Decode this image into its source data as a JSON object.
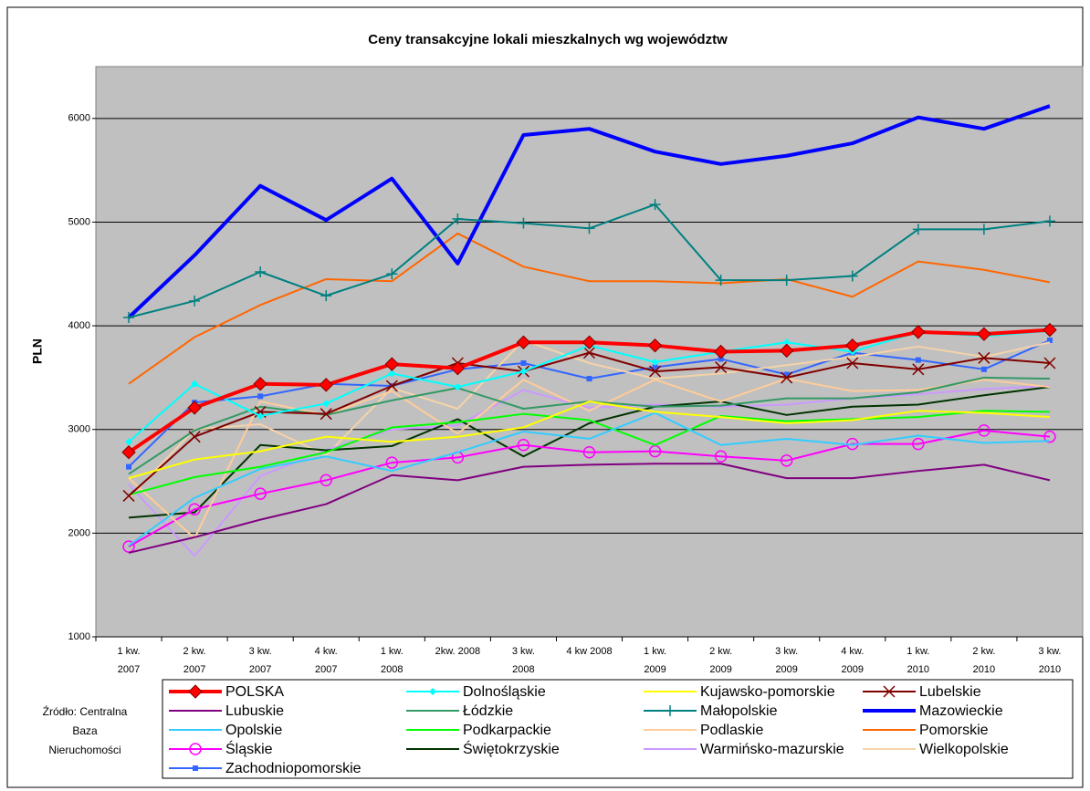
{
  "chart_data": {
    "type": "line",
    "title": "Ceny transakcyjne lokali mieszkalnych wg województw",
    "y_label": "PLN",
    "source": "Źródło: Centralna Baza Nieruchomości",
    "categories": [
      "1 kw. 2007",
      "2 kw. 2007",
      "3 kw. 2007",
      "4 kw. 2007",
      "1 kw. 2008",
      "2kw. 2008",
      "3 kw. 2008",
      "4 kw 2008",
      "1 kw. 2009",
      "2 kw. 2009",
      "3 kw. 2009",
      "4 kw. 2009",
      "1 kw. 2010",
      "2 kw. 2010",
      "3 kw. 2010"
    ],
    "ylim": [
      1000,
      6500
    ],
    "yticks": [
      1000,
      2000,
      3000,
      4000,
      5000,
      6000
    ],
    "grid": true,
    "series": [
      {
        "name": "POLSKA",
        "color": "#ff0000",
        "marker": "diamond",
        "values": [
          2780,
          3210,
          3440,
          3430,
          3630,
          3590,
          3840,
          3840,
          3810,
          3750,
          3760,
          3810,
          3940,
          3920,
          3960
        ]
      },
      {
        "name": "Dolnośląskie",
        "color": "#00ffff",
        "marker": "small-diamond",
        "values": [
          2880,
          3440,
          3130,
          3250,
          3540,
          3410,
          3560,
          3810,
          3650,
          3750,
          3840,
          3750,
          3940,
          3900,
          3950
        ]
      },
      {
        "name": "Kujawsko-pomorskie",
        "color": "#ffff00",
        "values": [
          2530,
          2710,
          2790,
          2930,
          2880,
          2930,
          3020,
          3270,
          3170,
          3120,
          3060,
          3090,
          3180,
          3160,
          3120
        ]
      },
      {
        "name": "Lubelskie",
        "color": "#800000",
        "marker": "x",
        "values": [
          2360,
          2930,
          3170,
          3150,
          3420,
          3640,
          3560,
          3740,
          3560,
          3600,
          3500,
          3640,
          3580,
          3690,
          3640
        ]
      },
      {
        "name": "Lubuskie",
        "color": "#800080",
        "values": [
          1810,
          1960,
          2130,
          2280,
          2560,
          2510,
          2640,
          2660,
          2670,
          2670,
          2530,
          2530,
          2600,
          2660,
          2510
        ]
      },
      {
        "name": "Łódzkie",
        "color": "#339966",
        "values": [
          2570,
          2990,
          3220,
          3140,
          3280,
          3400,
          3200,
          3270,
          3220,
          3230,
          3300,
          3300,
          3360,
          3500,
          3490
        ]
      },
      {
        "name": "Małopolskie",
        "color": "#008080",
        "marker": "plus",
        "values": [
          4080,
          4240,
          4520,
          4290,
          4500,
          5030,
          4990,
          4940,
          5170,
          4440,
          4440,
          4480,
          4930,
          4930,
          5010
        ]
      },
      {
        "name": "Mazowieckie",
        "color": "#0000ff",
        "values": [
          4080,
          4680,
          5350,
          5020,
          5420,
          4600,
          5840,
          5900,
          5680,
          5560,
          5640,
          5760,
          6010,
          5900,
          6120
        ]
      },
      {
        "name": "Opolskie",
        "color": "#33ccff",
        "values": [
          1880,
          2340,
          2620,
          2740,
          2600,
          2780,
          2980,
          2910,
          3160,
          2850,
          2910,
          2850,
          2940,
          2870,
          2890
        ]
      },
      {
        "name": "Podkarpackie",
        "color": "#00ff00",
        "values": [
          2370,
          2540,
          2640,
          2780,
          3020,
          3070,
          3150,
          3090,
          2850,
          3130,
          3080,
          3100,
          3120,
          3180,
          3170
        ]
      },
      {
        "name": "Podlaskie",
        "color": "#ffcc99",
        "values": [
          2530,
          1950,
          3270,
          3140,
          3370,
          2960,
          3480,
          3180,
          3480,
          3270,
          3490,
          3370,
          3380,
          3480,
          3410
        ]
      },
      {
        "name": "Pomorskie",
        "color": "#ff6600",
        "values": [
          3440,
          3890,
          4200,
          4450,
          4430,
          4890,
          4570,
          4430,
          4430,
          4410,
          4450,
          4280,
          4620,
          4540,
          4420
        ]
      },
      {
        "name": "Śląskie",
        "color": "#ff00ff",
        "marker": "circle",
        "values": [
          1870,
          2230,
          2380,
          2510,
          2680,
          2730,
          2850,
          2780,
          2790,
          2740,
          2700,
          2860,
          2860,
          2990,
          2930
        ]
      },
      {
        "name": "Świętokrzyskie",
        "color": "#003300",
        "values": [
          2150,
          2200,
          2850,
          2800,
          2840,
          3100,
          2740,
          3060,
          3220,
          3270,
          3140,
          3220,
          3240,
          3330,
          3410
        ]
      },
      {
        "name": "Warmińsko-mazurskie",
        "color": "#cc99ff",
        "values": [
          2470,
          1780,
          2550,
          2800,
          3000,
          3040,
          3380,
          3210,
          3240,
          3220,
          3240,
          3300,
          3340,
          3390,
          3420
        ]
      },
      {
        "name": "Wielkopolskie",
        "color": "#f5d3a8",
        "values": [
          2340,
          3000,
          3050,
          2750,
          3400,
          3200,
          3860,
          3640,
          3490,
          3540,
          3620,
          3700,
          3800,
          3700,
          3840
        ]
      },
      {
        "name": "Zachodniopomorskie",
        "color": "#3366ff",
        "marker": "small-square",
        "values": [
          2640,
          3260,
          3320,
          3440,
          3420,
          3580,
          3640,
          3490,
          3600,
          3680,
          3530,
          3740,
          3670,
          3580,
          3860
        ]
      }
    ]
  }
}
